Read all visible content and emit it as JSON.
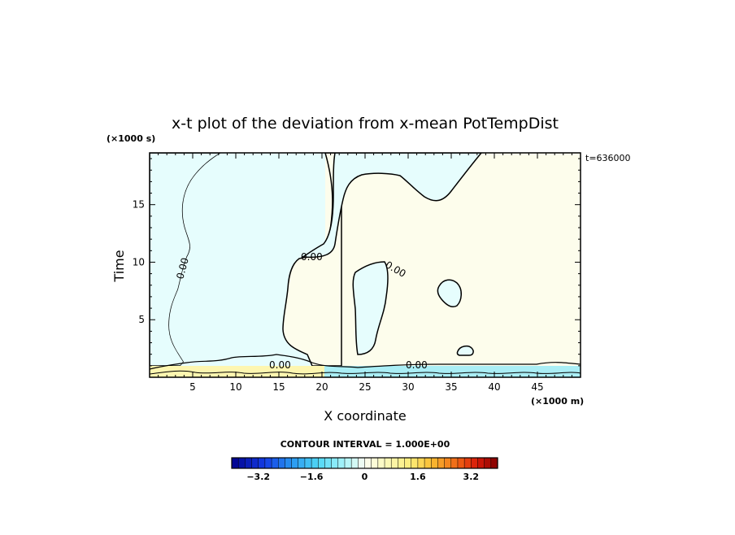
{
  "chart_data": {
    "type": "heatmap",
    "title": "x-t plot of the deviation from x-mean PotTempDist",
    "xlabel": "X coordinate",
    "ylabel": "Time",
    "x_unit": "(×1000 m)",
    "y_unit": "(×1000 s)",
    "time_stamp": "t=636000",
    "xlim": [
      0,
      50
    ],
    "ylim": [
      0,
      19.5
    ],
    "x_ticks": [
      5,
      10,
      15,
      20,
      25,
      30,
      35,
      40,
      45
    ],
    "y_ticks": [
      5,
      10,
      15
    ],
    "contour_interval_label": "CONTOUR INTERVAL = 1.000E+00",
    "contour_level_labels": [
      "0.00",
      "0.00",
      "0.00",
      "0.00",
      "0.00"
    ],
    "colorbar": {
      "min": -4,
      "max": 4,
      "step": 0.2,
      "tick_values": [
        -3.2,
        -1.6,
        0,
        1.6,
        3.2
      ],
      "tick_labels": [
        "−3.2",
        "−1.6",
        "0",
        "1.6",
        "3.2"
      ]
    },
    "regions": [
      {
        "sign": "negative",
        "description": "cool anomaly west side",
        "x_range": [
          2.5,
          20
        ],
        "t_range": [
          1.2,
          19.5
        ]
      },
      {
        "sign": "negative",
        "description": "cool anomaly north-east",
        "x_range": [
          22,
          38
        ],
        "t_range": [
          15.5,
          19.5
        ]
      },
      {
        "sign": "negative",
        "description": "cool blob",
        "x_range": [
          23.5,
          28.5
        ],
        "t_range": [
          2.2,
          10.3
        ]
      },
      {
        "sign": "negative",
        "description": "small cool blob",
        "x_range": [
          33.5,
          36.5
        ],
        "t_range": [
          6,
          8.5
        ]
      },
      {
        "sign": "negative",
        "description": "small cool blob",
        "x_range": [
          35.5,
          37.5
        ],
        "t_range": [
          1.9,
          2.8
        ]
      },
      {
        "sign": "positive",
        "description": "warm band near t=0",
        "x_range": [
          1,
          20
        ],
        "t_range": [
          0,
          1.1
        ]
      },
      {
        "sign": "negative",
        "description": "cool band near t=0",
        "x_range": [
          20,
          50
        ],
        "t_range": [
          0,
          1.1
        ]
      }
    ]
  }
}
